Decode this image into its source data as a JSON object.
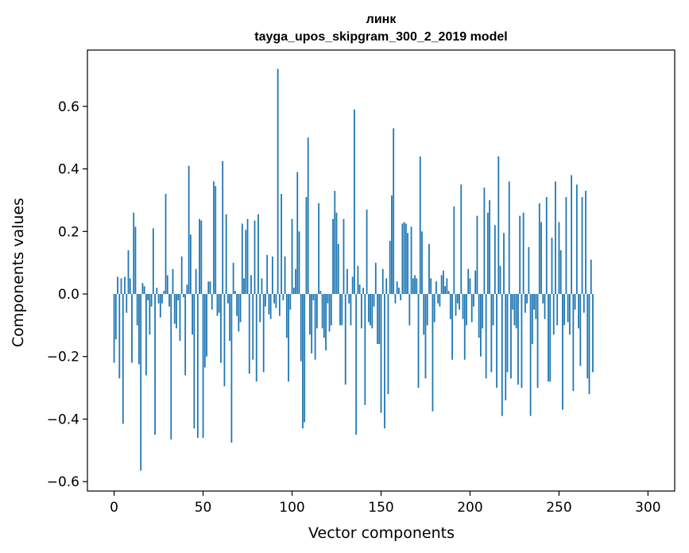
{
  "chart_data": {
    "type": "bar",
    "title": "линк",
    "subtitle": "tayga_upos_skipgram_300_2_2019 model",
    "xlabel": "Vector components",
    "ylabel": "Components values",
    "xlim": [
      -15,
      315
    ],
    "ylim": [
      -0.63,
      0.78
    ],
    "xticks": [
      0,
      50,
      100,
      150,
      200,
      250,
      300
    ],
    "yticks": [
      -0.6,
      -0.4,
      -0.2,
      0.0,
      0.2,
      0.4,
      0.6
    ],
    "ytick_labels": [
      "−0.6",
      "−0.4",
      "−0.2",
      "0.0",
      "0.2",
      "0.4",
      "0.6"
    ],
    "grid": false,
    "bar_color": "#1f77b4",
    "values": [
      -0.22,
      -0.145,
      0.055,
      -0.27,
      0.05,
      -0.415,
      0.055,
      -0.06,
      0.14,
      0.05,
      -0.22,
      0.26,
      0.215,
      -0.1,
      -0.225,
      -0.565,
      0.035,
      0.025,
      -0.26,
      -0.02,
      -0.13,
      -0.04,
      0.21,
      -0.45,
      0.02,
      -0.03,
      -0.075,
      -0.03,
      0.01,
      0.32,
      0.06,
      -0.04,
      -0.465,
      0.08,
      -0.095,
      -0.11,
      -0.02,
      -0.15,
      0.12,
      -0.01,
      -0.26,
      0.03,
      0.41,
      0.19,
      -0.13,
      -0.43,
      0.08,
      -0.46,
      0.24,
      0.235,
      -0.46,
      -0.235,
      -0.2,
      0.04,
      0.04,
      -0.05,
      0.36,
      0.345,
      -0.07,
      -0.06,
      -0.22,
      0.425,
      -0.295,
      0.255,
      -0.03,
      -0.15,
      -0.475,
      0.1,
      0.01,
      -0.07,
      -0.12,
      -0.09,
      0.225,
      0.05,
      0.205,
      0.24,
      -0.255,
      0.06,
      -0.21,
      0.235,
      -0.28,
      0.255,
      -0.09,
      0.05,
      -0.25,
      -0.04,
      0.125,
      -0.065,
      -0.08,
      0.12,
      -0.03,
      -0.045,
      0.72,
      -0.07,
      0.32,
      -0.02,
      0.12,
      -0.14,
      -0.28,
      -0.05,
      0.24,
      0.02,
      0.08,
      0.39,
      0.2,
      -0.215,
      -0.43,
      -0.41,
      0.31,
      0.5,
      -0.13,
      -0.19,
      -0.02,
      -0.21,
      -0.11,
      0.29,
      0.01,
      -0.11,
      -0.14,
      -0.18,
      -0.03,
      -0.12,
      -0.1,
      0.24,
      0.33,
      0.26,
      0.16,
      -0.1,
      -0.1,
      0.24,
      -0.29,
      0.08,
      -0.03,
      -0.1,
      0.055,
      0.59,
      -0.45,
      0.09,
      0.03,
      -0.11,
      0.02,
      -0.355,
      0.27,
      -0.09,
      -0.1,
      -0.11,
      -0.04,
      0.1,
      -0.16,
      -0.16,
      -0.38,
      0.08,
      -0.43,
      0.05,
      -0.32,
      0.17,
      0.315,
      0.53,
      -0.03,
      0.04,
      0.02,
      -0.02,
      0.225,
      0.23,
      0.225,
      0.195,
      -0.1,
      0.215,
      0.05,
      0.06,
      0.05,
      -0.3,
      0.44,
      0.2,
      -0.13,
      -0.27,
      -0.1,
      0.16,
      0.05,
      -0.375,
      -0.09,
      0.04,
      -0.03,
      -0.04,
      0.06,
      0.075,
      0.025,
      0.05,
      0.01,
      -0.08,
      -0.21,
      0.28,
      -0.07,
      -0.03,
      -0.05,
      0.35,
      -0.08,
      -0.21,
      -0.1,
      0.08,
      0.05,
      -0.09,
      -0.04,
      0.075,
      0.25,
      -0.14,
      -0.2,
      -0.11,
      0.34,
      -0.27,
      0.26,
      0.3,
      -0.25,
      -0.1,
      0.22,
      -0.3,
      0.44,
      0.09,
      -0.39,
      0.195,
      -0.34,
      -0.25,
      0.36,
      -0.27,
      -0.05,
      -0.1,
      -0.11,
      -0.29,
      0.25,
      -0.3,
      0.26,
      -0.06,
      -0.03,
      0.15,
      -0.39,
      -0.16,
      -0.05,
      -0.08,
      -0.3,
      0.29,
      0.23,
      -0.03,
      -0.08,
      0.31,
      -0.28,
      -0.28,
      0.18,
      -0.13,
      0.36,
      -0.1,
      0.23,
      0.14,
      -0.37,
      -0.1,
      0.31,
      -0.09,
      -0.13,
      0.38,
      -0.31,
      -0.05,
      0.35,
      -0.11,
      -0.23,
      0.31,
      -0.06,
      0.33,
      -0.27,
      -0.32,
      0.11,
      -0.25
    ]
  }
}
